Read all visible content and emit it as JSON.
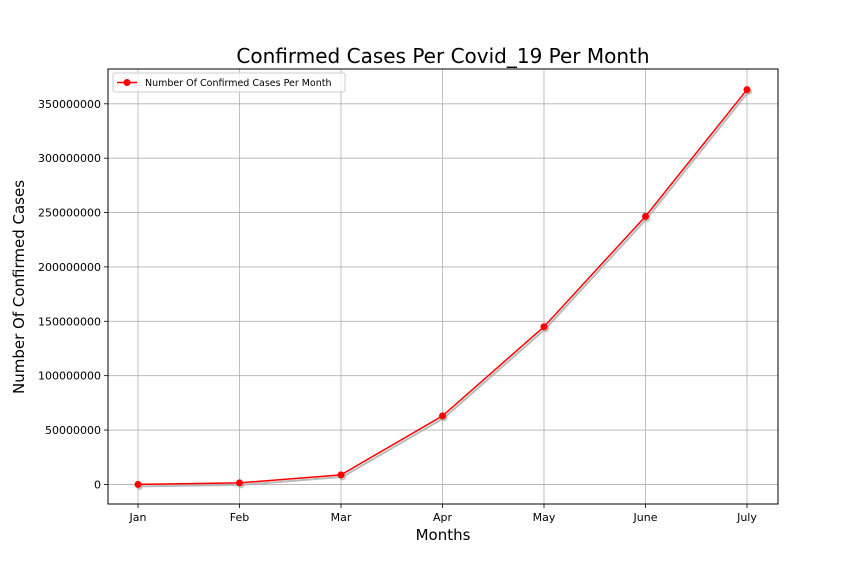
{
  "chart_data": {
    "type": "line",
    "title": "Confirmed Cases Per Covid_19 Per Month",
    "xlabel": "Months",
    "ylabel": "Number Of Confirmed Cases",
    "categories": [
      "Jan",
      "Feb",
      "Mar",
      "Apr",
      "May",
      "June",
      "July"
    ],
    "series": [
      {
        "name": "Number Of Confirmed Cases Per Month",
        "values": [
          0,
          1400000,
          8800000,
          63000000,
          145000000,
          246500000,
          363000000
        ],
        "color": "#ff0000"
      }
    ],
    "shadow_color": "#aaaaaa",
    "ylim": [
      -18000000,
      382000000
    ],
    "yticks": [
      0,
      50000000,
      100000000,
      150000000,
      200000000,
      250000000,
      300000000,
      350000000
    ],
    "grid": true,
    "legend_position": "top-left"
  }
}
